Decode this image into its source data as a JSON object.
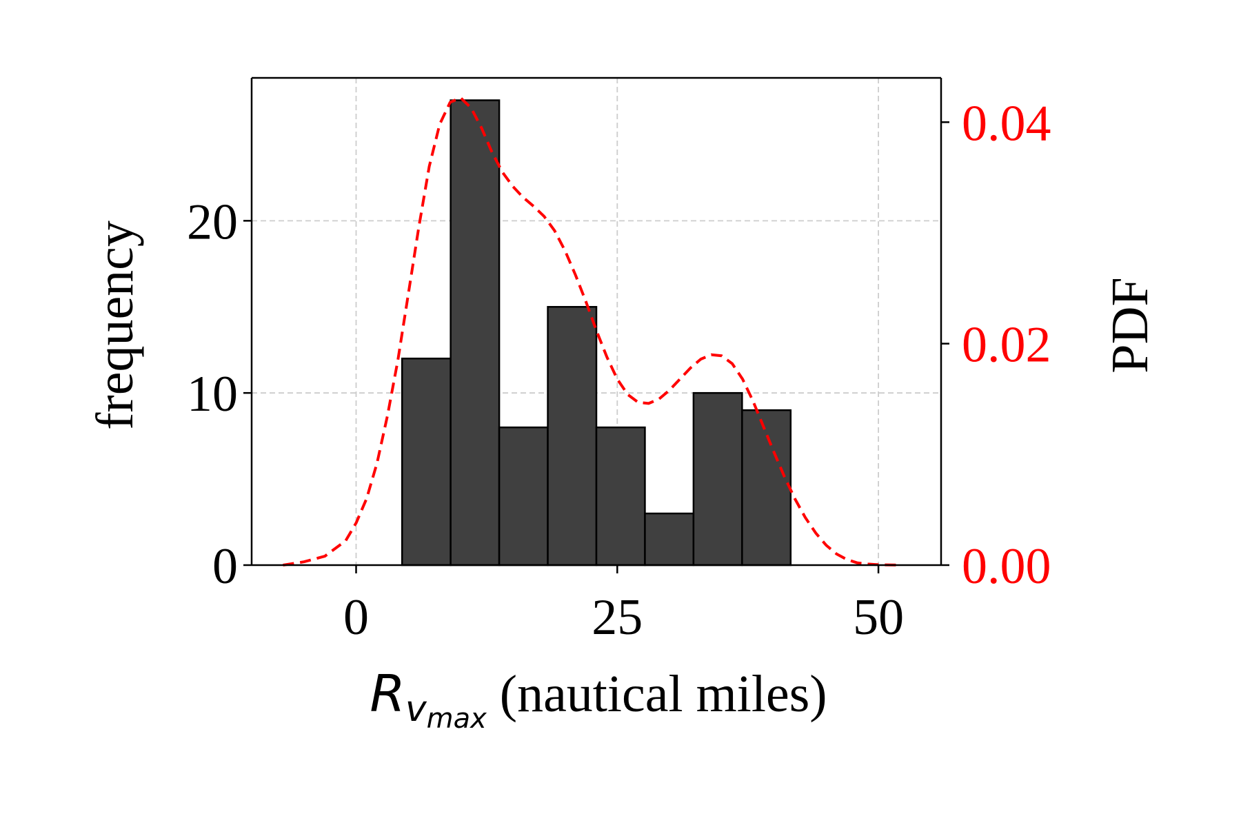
{
  "chart_data": {
    "type": "bar",
    "title": "",
    "xlabel": {
      "symbol": "R",
      "subscript": "v",
      "subsubscript": "max",
      "text": " (nautical miles)"
    },
    "ylabel": "frequency",
    "y2label": "PDF",
    "xlim": [
      -10,
      56
    ],
    "ylim": [
      0,
      28.3
    ],
    "y2lim": [
      0,
      0.044
    ],
    "xticks": [
      0,
      25,
      50
    ],
    "xtick_labels": [
      "0",
      "25",
      "50"
    ],
    "yticks": [
      0,
      10,
      20
    ],
    "ytick_labels": [
      "0",
      "10",
      "20"
    ],
    "y2ticks": [
      0,
      0.02,
      0.04
    ],
    "y2tick_labels": [
      "0.00",
      "0.02",
      "0.04"
    ],
    "grid": true,
    "bins": [
      {
        "x0": 4.4,
        "x1": 9.05,
        "value": 12
      },
      {
        "x0": 9.05,
        "x1": 13.7,
        "value": 27
      },
      {
        "x0": 13.7,
        "x1": 18.35,
        "value": 8
      },
      {
        "x0": 18.35,
        "x1": 23.0,
        "value": 15
      },
      {
        "x0": 23.0,
        "x1": 27.65,
        "value": 8
      },
      {
        "x0": 27.65,
        "x1": 32.3,
        "value": 3
      },
      {
        "x0": 32.3,
        "x1": 36.95,
        "value": 10
      },
      {
        "x0": 36.95,
        "x1": 41.6,
        "value": 9
      }
    ],
    "series": [
      {
        "style": "dashed-line",
        "axis": "right",
        "x": [
          -7,
          -5,
          -3,
          -1,
          0,
          1,
          2,
          3,
          4,
          5,
          6,
          7,
          8,
          9,
          10,
          11,
          12,
          13,
          14,
          15,
          16,
          17,
          18,
          19,
          20,
          21,
          22,
          23,
          24,
          25,
          26,
          27,
          28,
          29,
          30,
          31,
          32,
          33,
          34,
          35,
          36,
          37,
          38,
          39,
          40,
          41,
          42,
          43,
          44,
          45,
          46,
          47,
          48,
          49,
          50,
          52
        ],
        "y": [
          0.0,
          0.0003,
          0.0008,
          0.0022,
          0.0038,
          0.006,
          0.0092,
          0.0135,
          0.0185,
          0.0245,
          0.0305,
          0.036,
          0.0398,
          0.0418,
          0.0422,
          0.0413,
          0.0395,
          0.0373,
          0.0355,
          0.0342,
          0.0332,
          0.0324,
          0.0315,
          0.0302,
          0.0284,
          0.0262,
          0.0238,
          0.0212,
          0.0188,
          0.0168,
          0.0154,
          0.0147,
          0.0146,
          0.015,
          0.0158,
          0.0168,
          0.0178,
          0.0186,
          0.019,
          0.0189,
          0.0182,
          0.0168,
          0.0148,
          0.0125,
          0.0102,
          0.008,
          0.006,
          0.0043,
          0.0029,
          0.0018,
          0.001,
          0.0005,
          0.0002,
          0.0001,
          4e-05,
          0.0
        ]
      }
    ],
    "colors": {
      "bar_fill": "#404040",
      "bar_edge": "#000000",
      "pdf_line": "#ff0000",
      "grid": "#cccccc",
      "axis": "#000000",
      "right_axis_text": "#ff0000"
    }
  }
}
